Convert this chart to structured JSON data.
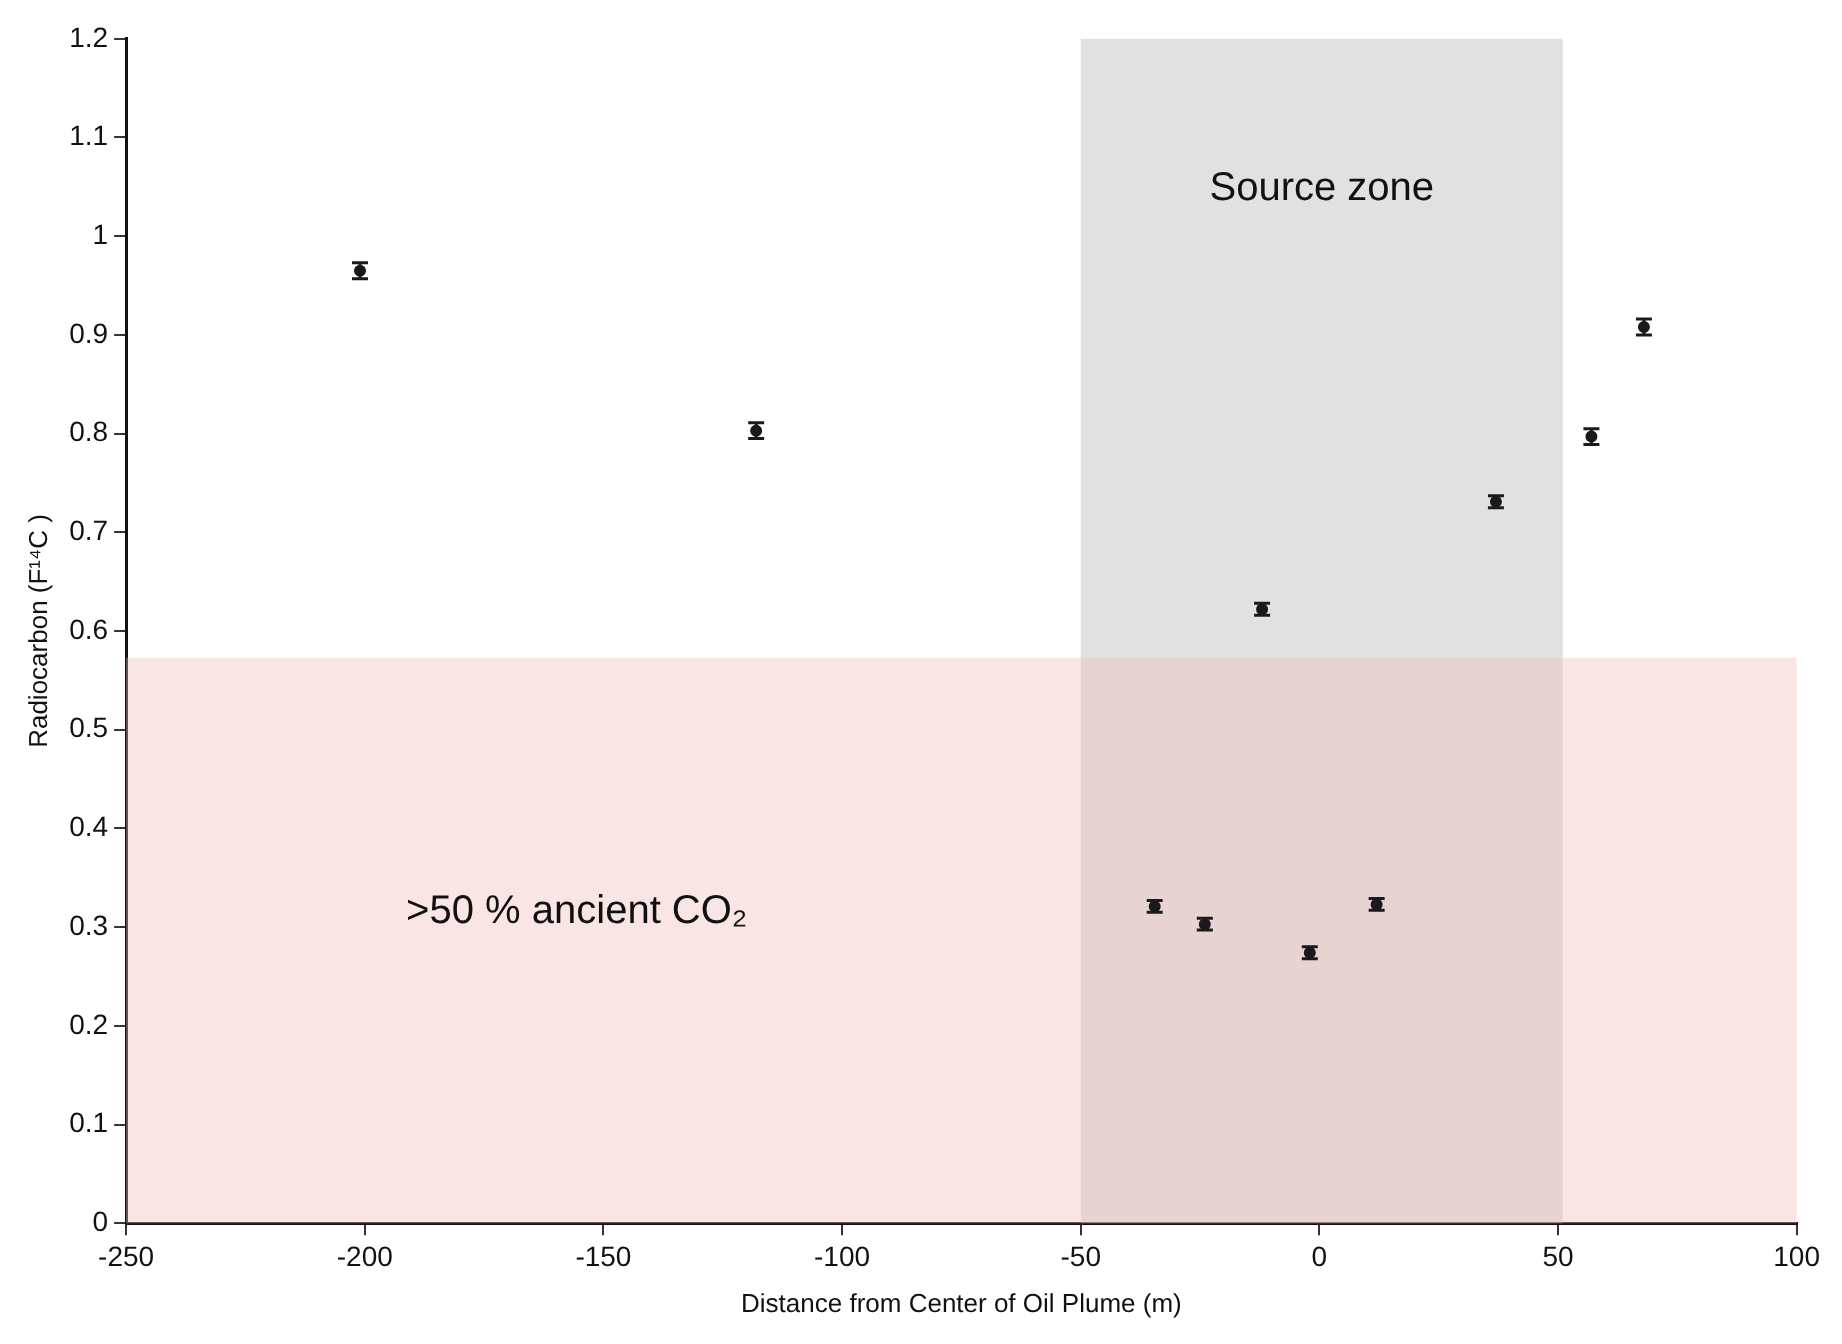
{
  "chart_data": {
    "type": "scatter",
    "xlabel": "Distance from Center of Oil Plume (m)",
    "ylabel": "Radiocarbon (F¹⁴C )",
    "x": [
      -201,
      -118,
      -12,
      37,
      57,
      68,
      -34.5,
      -24,
      -2,
      12
    ],
    "series": [
      {
        "color": "#1a1a1a",
        "values": [
          0.965,
          0.803,
          0.622,
          0.731,
          0.797,
          0.908,
          0.321,
          0.303,
          0.274,
          0.323
        ],
        "errors": [
          0.008,
          0.008,
          0.006,
          0.006,
          0.008,
          0.008,
          0.006,
          0.006,
          0.006,
          0.006
        ]
      }
    ],
    "xlim": [
      -250,
      100
    ],
    "xticks": [
      -250,
      -200,
      -150,
      -100,
      -50,
      0,
      50,
      100
    ],
    "ylim": [
      0,
      1.2
    ],
    "yticks": [
      0,
      0.1,
      0.2,
      0.3,
      0.4,
      0.5,
      0.6,
      0.7,
      0.8,
      0.9,
      1,
      1.1,
      1.2
    ],
    "bands": [
      {
        "axis": "x",
        "from": -50,
        "to": 51,
        "label": "Source zone",
        "color": "#b4b4b4"
      },
      {
        "axis": "y",
        "from": 0,
        "to": 0.573,
        "label": ">50 % ancient CO₂",
        "color": "#f0bfb8"
      }
    ],
    "marker": "circle",
    "grid": false,
    "legend": false
  }
}
